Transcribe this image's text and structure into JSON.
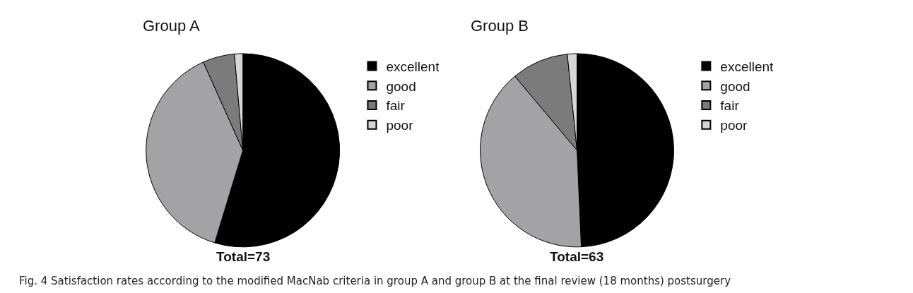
{
  "chart_data": [
    {
      "type": "pie",
      "title": "Group A",
      "categories": [
        "excellent",
        "good",
        "fair",
        "poor"
      ],
      "values": [
        54.7,
        38.6,
        5.3,
        1.4
      ],
      "colors": [
        "#000000",
        "#a3a3a6",
        "#7b7b7b",
        "#d6d6d6"
      ],
      "legend": "right",
      "annotations": [
        "Total=73"
      ]
    },
    {
      "type": "pie",
      "title": "Group B",
      "categories": [
        "excellent",
        "good",
        "fair",
        "poor"
      ],
      "values": [
        49.3,
        39.6,
        9.5,
        1.6
      ],
      "colors": [
        "#000000",
        "#a3a3a6",
        "#7b7b7b",
        "#d6d6d6"
      ],
      "legend": "right",
      "annotations": [
        "Total=63",
        "Fig. 4 Satisfaction rates according to the modified MacNab criteria in group A and group B at the final review (18 months) postsurgery"
      ]
    }
  ]
}
